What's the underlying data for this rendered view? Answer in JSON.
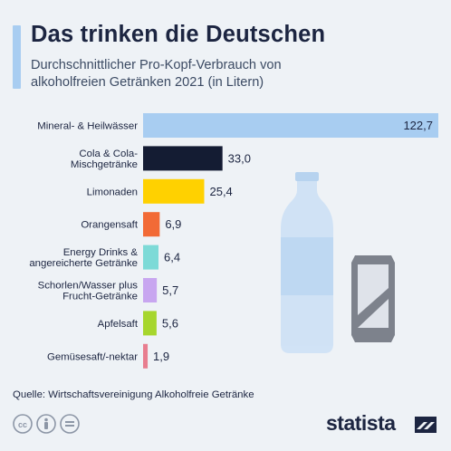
{
  "header": {
    "title": "Das trinken die Deutschen",
    "subtitle": "Durchschnittlicher Pro-Kopf-Verbrauch von alkoholfreien Getränken 2021 (in Litern)"
  },
  "chart_data": {
    "type": "bar",
    "orientation": "horizontal",
    "categories": [
      [
        "Mineral- & Heilwässer"
      ],
      [
        "Cola & Cola-",
        "Mischgetränke"
      ],
      [
        "Limonaden"
      ],
      [
        "Orangensaft"
      ],
      [
        "Energy Drinks &",
        "angereicherte Getränke"
      ],
      [
        "Schorlen/Wasser plus",
        "Frucht-Getränke"
      ],
      [
        "Apfelsaft"
      ],
      [
        "Gemüsesaft/-nektar"
      ]
    ],
    "values": [
      122.7,
      33.0,
      25.4,
      6.9,
      6.4,
      5.7,
      5.6,
      1.9
    ],
    "value_labels": [
      "122,7",
      "33,0",
      "25,4",
      "6,9",
      "6,4",
      "5,7",
      "5,6",
      "1,9"
    ],
    "colors": [
      "#a8cdf1",
      "#141c33",
      "#ffd100",
      "#f26a36",
      "#7ddad7",
      "#c8a6f0",
      "#a6d62d",
      "#e87d8f"
    ],
    "grid": false,
    "legend": "none"
  },
  "footer": {
    "source": "Quelle: Wirtschaftsvereinigung Alkoholfreie Getränke",
    "brand": "statista",
    "icons": [
      "cc-icon",
      "by-icon",
      "nd-icon"
    ]
  }
}
